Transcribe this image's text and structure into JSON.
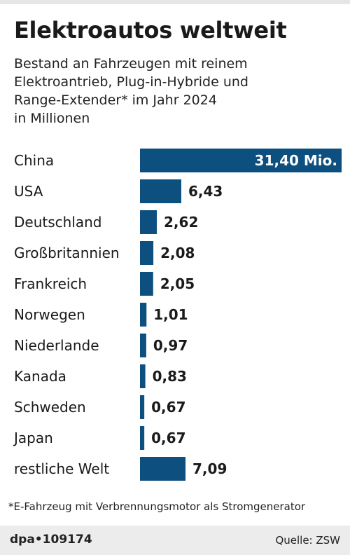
{
  "header": {
    "title": "Elektroautos weltweit",
    "subtitle_lines": [
      "Bestand an Fahrzeugen mit reinem",
      "Elektroantrieb, Plug-in-Hybride und",
      "Range-Extender* im Jahr 2024",
      "in Millionen"
    ]
  },
  "chart_data": {
    "type": "bar",
    "orientation": "horizontal",
    "title": "Elektroautos weltweit",
    "categories": [
      "China",
      "USA",
      "Deutschland",
      "Großbritannien",
      "Frankreich",
      "Norwegen",
      "Niederlande",
      "Kanada",
      "Schweden",
      "Japan",
      "restliche Welt"
    ],
    "values": [
      31.4,
      6.43,
      2.62,
      2.08,
      2.05,
      1.01,
      0.97,
      0.83,
      0.67,
      0.67,
      7.09
    ],
    "value_labels": [
      "31,40 Mio.",
      "6,43",
      "2,62",
      "2,08",
      "2,05",
      "1,01",
      "0,97",
      "0,83",
      "0,67",
      "0,67",
      "7,09"
    ],
    "bar_color": "#0d4f7f",
    "xlim": [
      0,
      31.4
    ]
  },
  "footnote": "*E-Fahrzeug mit Verbrennungsmotor als Stromgenerator",
  "footer": {
    "id": "dpa•109174",
    "source": "Quelle: ZSW"
  },
  "colors": {
    "bar": "#0d4f7f",
    "text": "#1a1a1a",
    "footer_bg": "#ececec"
  }
}
